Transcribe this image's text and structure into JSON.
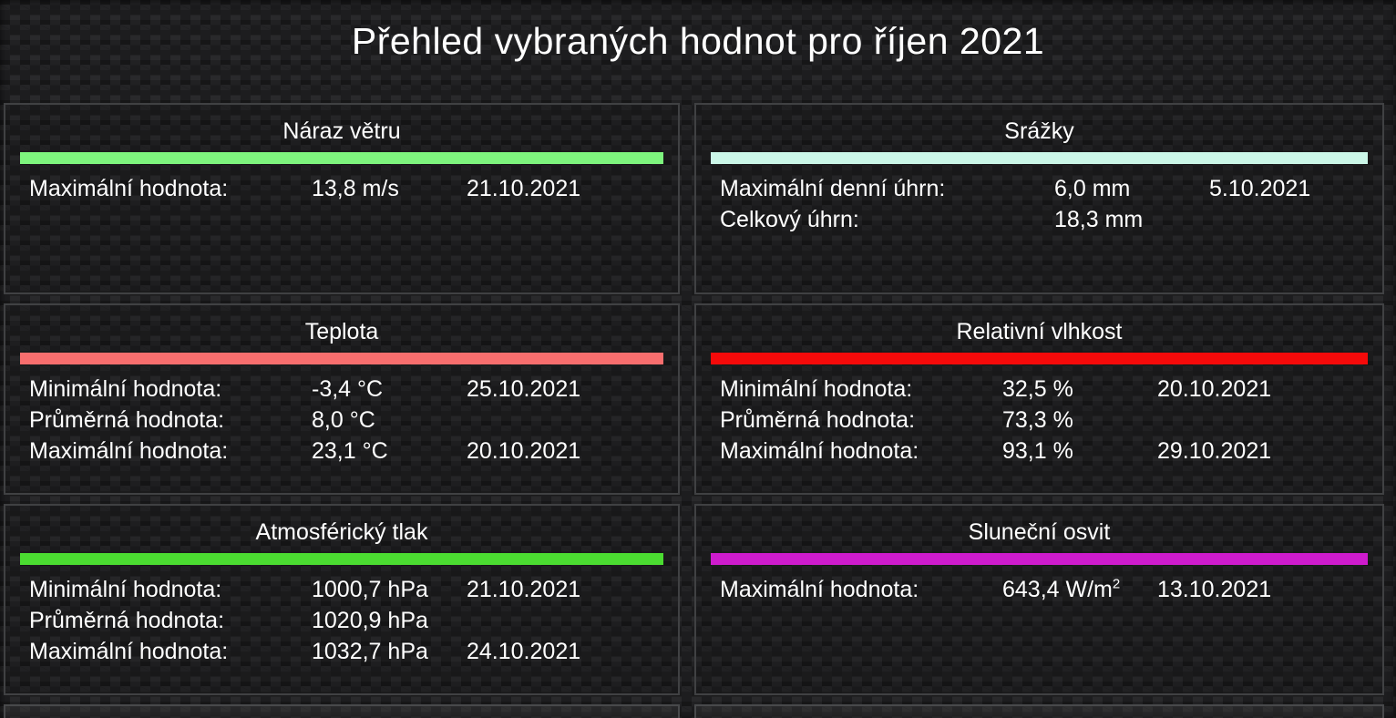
{
  "header": {
    "title": "Přehled vybraných hodnot pro říjen 2021"
  },
  "panels": [
    {
      "title": "Náraz větru",
      "accent_color": "#7ef57e",
      "rows": [
        {
          "label": "Maximální hodnota:",
          "value": "13,8 m/s",
          "date": "21.10.2021"
        }
      ]
    },
    {
      "title": "Srážky",
      "accent_color": "#cbf7e8",
      "rows": [
        {
          "label": "Maximální denní úhrn:",
          "value": "6,0 mm",
          "date": "5.10.2021"
        },
        {
          "label": "Celkový úhrn:",
          "value": "18,3 mm",
          "date": ""
        }
      ]
    },
    {
      "title": "Teplota",
      "accent_color": "#f86e6e",
      "rows": [
        {
          "label": "Minimální hodnota:",
          "value": "-3,4 °C",
          "date": "25.10.2021"
        },
        {
          "label": "Průměrná hodnota:",
          "value": "8,0 °C",
          "date": ""
        },
        {
          "label": "Maximální hodnota:",
          "value": "23,1 °C",
          "date": "20.10.2021"
        }
      ]
    },
    {
      "title": "Relativní vlhkost",
      "accent_color": "#f50a0a",
      "rows": [
        {
          "label": "Minimální hodnota:",
          "value": "32,5 %",
          "date": "20.10.2021"
        },
        {
          "label": "Průměrná hodnota:",
          "value": "73,3 %",
          "date": ""
        },
        {
          "label": "Maximální hodnota:",
          "value": "93,1 %",
          "date": "29.10.2021"
        }
      ]
    },
    {
      "title": "Atmosférický tlak",
      "accent_color": "#4bdc31",
      "rows": [
        {
          "label": "Minimální hodnota:",
          "value": "1000,7 hPa",
          "date": "21.10.2021"
        },
        {
          "label": "Průměrná hodnota:",
          "value": "1020,9 hPa",
          "date": ""
        },
        {
          "label": "Maximální hodnota:",
          "value": "1032,7 hPa",
          "date": "24.10.2021"
        }
      ]
    },
    {
      "title": "Sluneční osvit",
      "accent_color": "#ce1bcd",
      "rows": [
        {
          "label": "Maximální hodnota:",
          "value": "643,4 W/m",
          "value_sup": "2",
          "date": "13.10.2021"
        }
      ]
    }
  ]
}
